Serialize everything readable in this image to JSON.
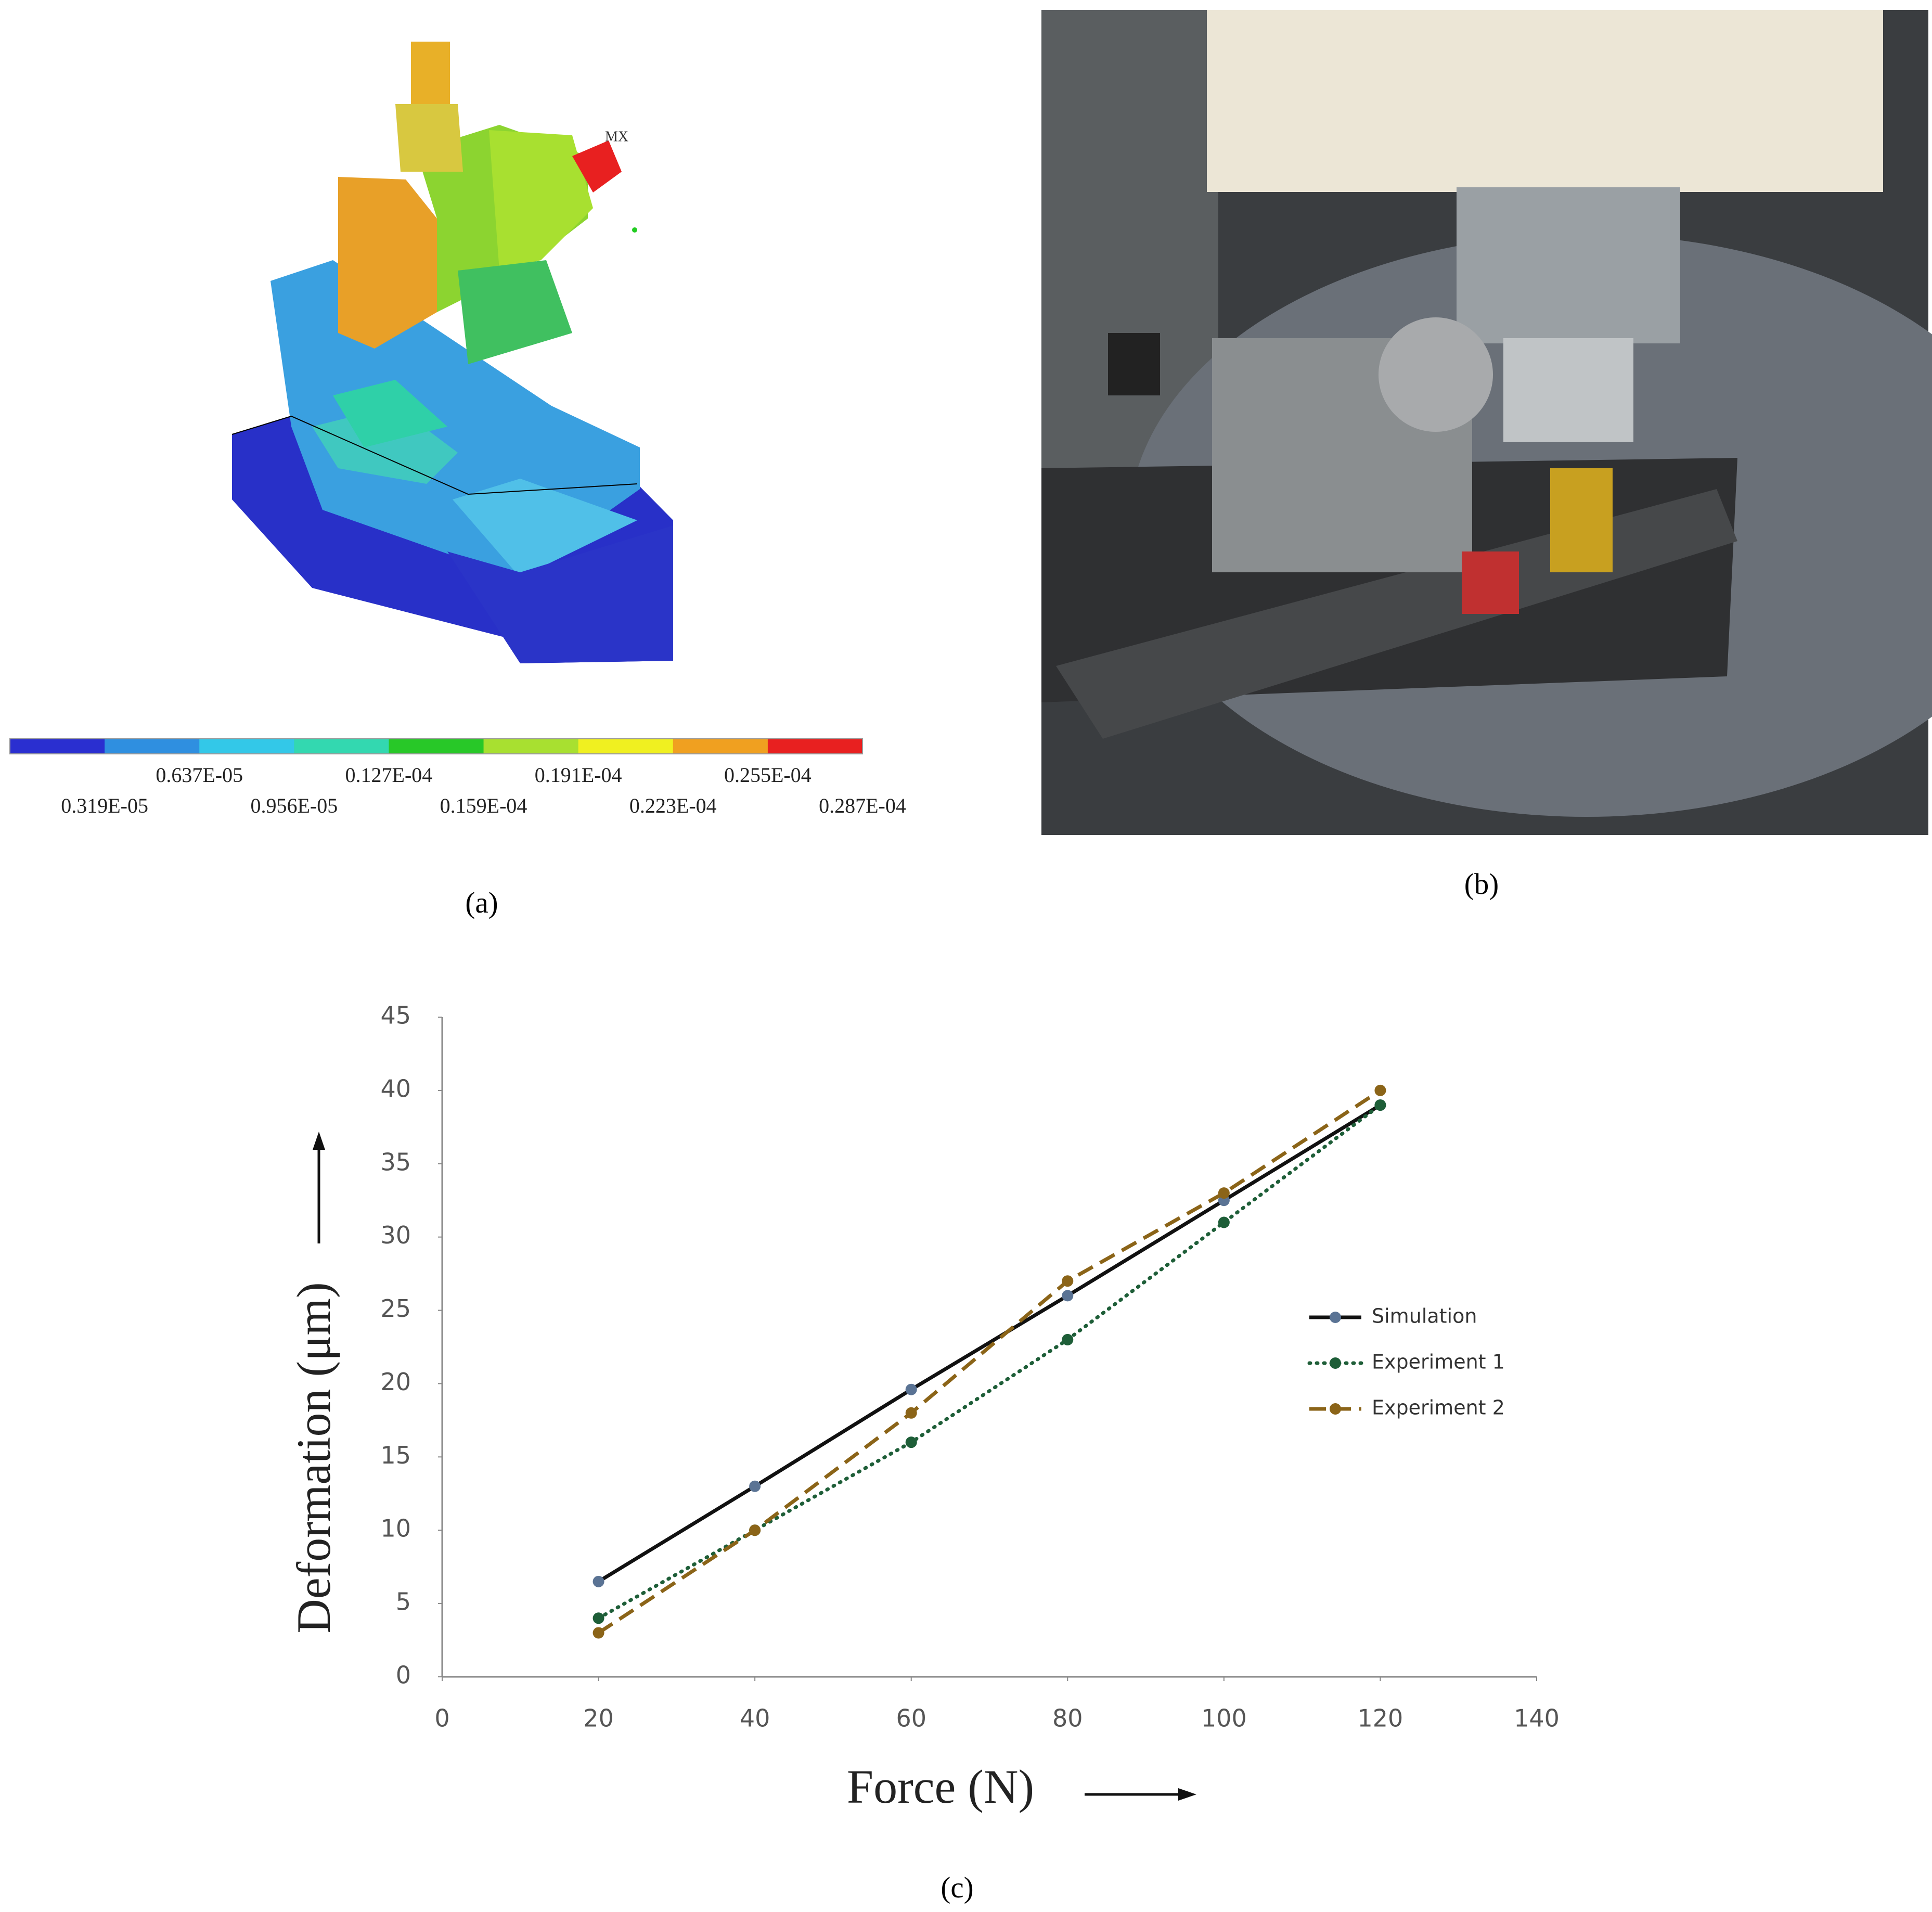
{
  "panel_a": {
    "label": "(a)",
    "marker_text": "MX",
    "colorbar_colors": [
      "#2a2fd0",
      "#2f8fe0",
      "#33c8e8",
      "#33d8b0",
      "#28c828",
      "#a8e030",
      "#f0f020",
      "#f0a020",
      "#e82020"
    ],
    "colorbar_labels_top": [
      "0.637E-05",
      "0.127E-04",
      "0.191E-04",
      "0.255E-04"
    ],
    "colorbar_labels_bottom": [
      "0.319E-05",
      "0.956E-05",
      "0.159E-04",
      "0.223E-04",
      "0.287E-04"
    ]
  },
  "panel_b": {
    "label": "(b)"
  },
  "panel_c": {
    "label": "(c)"
  },
  "chart_data": {
    "type": "line",
    "x_label": "Force (N)",
    "y_label": "Deformation (μm)",
    "x": [
      20,
      40,
      60,
      80,
      100,
      120
    ],
    "series": [
      {
        "name": "Simulation",
        "color": "#111111",
        "marker_color": "#5a7394",
        "dash": "solid",
        "values": [
          6.5,
          13,
          19.6,
          26,
          32.5,
          39
        ]
      },
      {
        "name": "Experiment 1",
        "color": "#1e5e38",
        "marker_color": "#1e5e38",
        "dash": "dotted",
        "values": [
          4,
          10,
          16,
          23,
          31,
          39
        ]
      },
      {
        "name": "Experiment 2",
        "color": "#8b6418",
        "marker_color": "#8b6418",
        "dash": "dashed",
        "values": [
          3,
          10,
          18,
          27,
          33,
          40
        ]
      }
    ],
    "xlim": [
      0,
      140
    ],
    "xticks": [
      0,
      20,
      40,
      60,
      80,
      100,
      120,
      140
    ],
    "ylim": [
      0,
      45
    ],
    "yticks": [
      0,
      5,
      10,
      15,
      20,
      25,
      30,
      35,
      40,
      45
    ],
    "grid": false,
    "legend": "right"
  }
}
